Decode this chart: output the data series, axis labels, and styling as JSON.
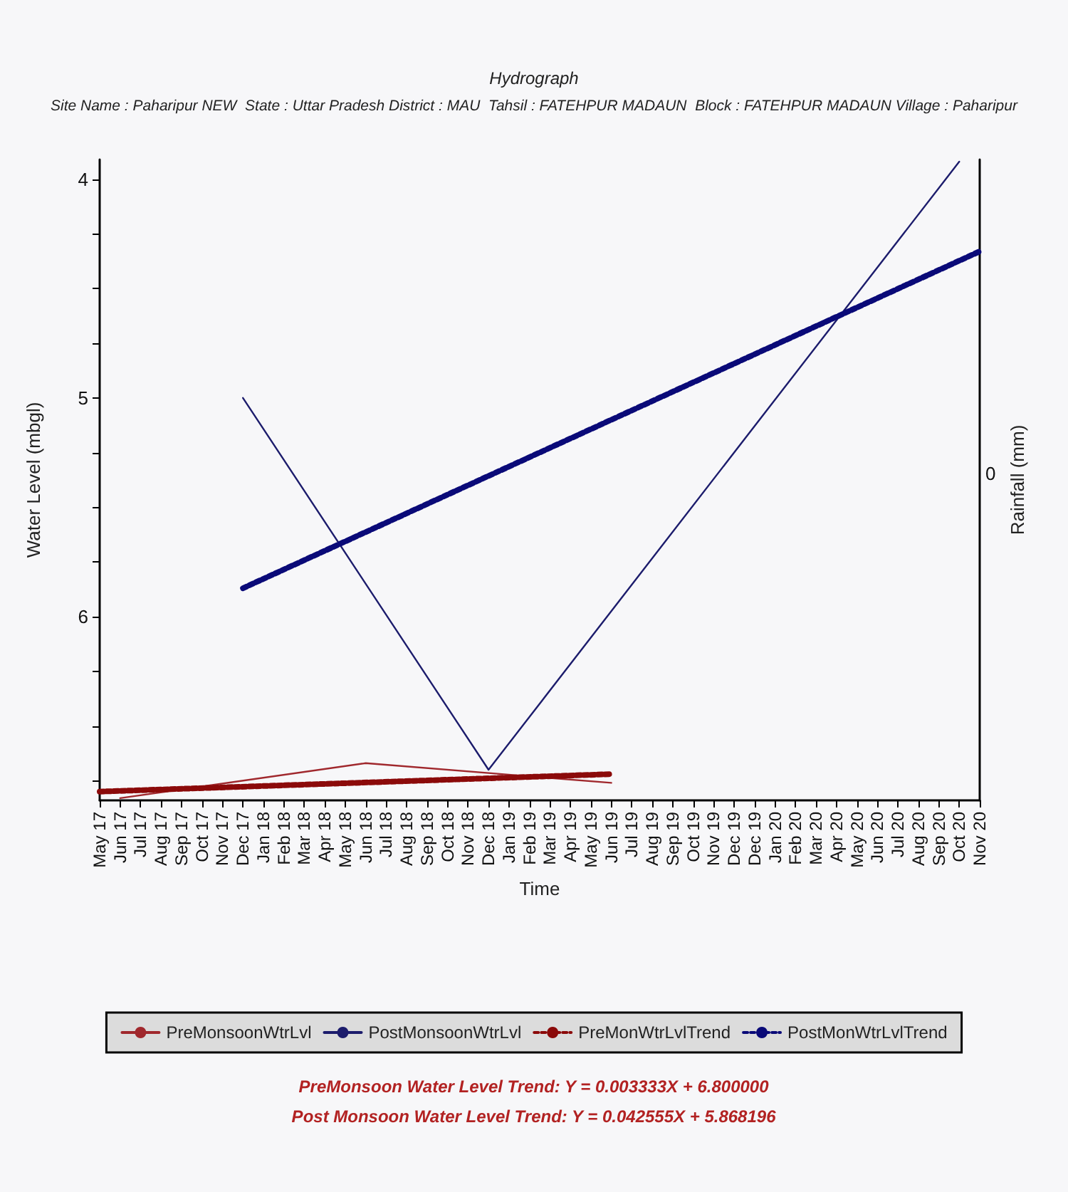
{
  "chart_data": {
    "type": "line",
    "title": "Hydrograph",
    "subtitle": "Site Name : Paharipur NEW  State : Uttar Pradesh District : MAU  Tahsil : FATEHPUR MADAUN  Block : FATEHPUR MADAUN Village : Paharipur",
    "xlabel": "Time",
    "ylabel": "Water Level (mbgl)",
    "y2label": "Rainfall (mm)",
    "categories": [
      "May 17",
      "Jun 17",
      "Jul 17",
      "Aug 17",
      "Sep 17",
      "Oct 17",
      "Nov 17",
      "Dec 17",
      "Jan 18",
      "Feb 18",
      "Mar 18",
      "Apr 18",
      "May 18",
      "Jun 18",
      "Jul 18",
      "Aug 18",
      "Sep 18",
      "Oct 18",
      "Nov 18",
      "Dec 18",
      "Jan 19",
      "Feb 19",
      "Mar 19",
      "Apr 19",
      "May 19",
      "Jun 19",
      "Jul 19",
      "Aug 19",
      "Sep 19",
      "Oct 19",
      "Nov 19",
      "Dec 19",
      "Dec 19",
      "Jan 20",
      "Feb 20",
      "Mar 20",
      "Apr 20",
      "May 20",
      "Jun 20",
      "Jul 20",
      "Aug 20",
      "Sep 20",
      "Oct 20",
      "Nov 20"
    ],
    "series": [
      {
        "name": "PreMonsoonWtrLvl",
        "color": "#a0282d",
        "line_style": "solid",
        "values": [
          null,
          6.83,
          null,
          null,
          null,
          null,
          null,
          null,
          null,
          null,
          null,
          null,
          null,
          6.67,
          null,
          null,
          null,
          null,
          null,
          null,
          null,
          null,
          null,
          null,
          null,
          6.76,
          null,
          null,
          null,
          null,
          null,
          null,
          null,
          null,
          null,
          null,
          null,
          null,
          null,
          null,
          null,
          null,
          null,
          null
        ]
      },
      {
        "name": "PostMonsoonWtrLvl",
        "color": "#1c1c6c",
        "line_style": "solid",
        "values": [
          null,
          null,
          null,
          null,
          null,
          null,
          null,
          5.0,
          null,
          null,
          null,
          null,
          null,
          null,
          null,
          null,
          null,
          null,
          null,
          6.7,
          null,
          null,
          null,
          null,
          null,
          null,
          null,
          null,
          null,
          null,
          null,
          null,
          null,
          null,
          null,
          null,
          null,
          null,
          null,
          null,
          null,
          null,
          3.92,
          null
        ]
      },
      {
        "name": "PreMonWtrLvlTrend",
        "color": "#8b0a0a",
        "line_style": "dashed",
        "values": [
          6.8,
          null,
          null,
          null,
          null,
          null,
          null,
          null,
          null,
          null,
          null,
          null,
          null,
          null,
          null,
          null,
          null,
          null,
          null,
          null,
          null,
          null,
          null,
          null,
          null,
          6.72,
          null,
          null,
          null,
          null,
          null,
          null,
          null,
          null,
          null,
          null,
          null,
          null,
          null,
          null,
          null,
          null,
          null,
          null
        ]
      },
      {
        "name": "PostMonWtrLvlTrend",
        "color": "#0a0a78",
        "line_style": "dashed",
        "values": [
          null,
          null,
          null,
          null,
          null,
          null,
          null,
          5.87,
          null,
          null,
          null,
          null,
          null,
          null,
          null,
          null,
          null,
          null,
          null,
          null,
          null,
          null,
          null,
          null,
          null,
          null,
          null,
          null,
          null,
          null,
          null,
          null,
          null,
          null,
          null,
          null,
          null,
          null,
          null,
          null,
          null,
          null,
          null,
          4.33
        ]
      }
    ],
    "ylim": [
      6.84,
      3.91
    ],
    "yticks": [
      4,
      {
        "value": 4.25,
        "label": null
      },
      {
        "value": 4.5,
        "label": null
      },
      {
        "value": 4.75,
        "label": null
      },
      5,
      {
        "value": 5.25,
        "label": null
      },
      {
        "value": 5.5,
        "label": null
      },
      {
        "value": 5.75,
        "label": null
      },
      6,
      {
        "value": 6.25,
        "label": null
      },
      {
        "value": 6.5,
        "label": null
      },
      {
        "value": 6.75,
        "label": null
      }
    ],
    "grid": false,
    "legend": "bottom",
    "marker": "none",
    "annotations": [
      "0",
      "PreMonsoon Water Level Trend: Y = 0.003333X + 6.800000",
      "Post Monsoon Water Level Trend: Y = 0.042555X + 5.868196"
    ]
  }
}
